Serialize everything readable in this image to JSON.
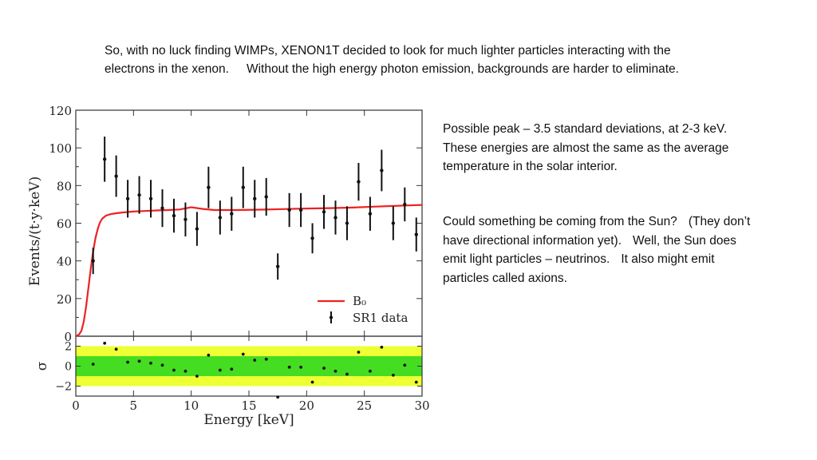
{
  "intro": {
    "line1": "So, with no luck finding WIMPs, XENON1T decided to look for much lighter particles interacting with the",
    "line2a": "electrons in the xenon.",
    "line2b": "Without the high energy photon emission, backgrounds are harder to eliminate."
  },
  "note1": {
    "line1": "Possible peak – 3.5 standard deviations, at 2-3 keV.",
    "line2": "These energies are almost the same as the average",
    "line3": "temperature in the solar interior."
  },
  "note2": {
    "line1a": "Could something be coming from the Sun?",
    "line1b": "(They don’t",
    "line2a": "have directional information yet).",
    "line2b": "Well, the Sun does",
    "line3a": "emit light particles – neutrinos.",
    "line3b": "It also might emit",
    "line4": "particles called axions."
  },
  "colors": {
    "model_line": "#ee2222",
    "band_inner": "#44dd22",
    "band_outer": "#eeff33",
    "data": "#111111"
  },
  "chart_data": [
    {
      "type": "scatter",
      "title": "",
      "xlabel": "",
      "ylabel": "Events/(t·y·keV)",
      "xlim": [
        0,
        30
      ],
      "ylim": [
        0,
        120
      ],
      "yticks": [
        0,
        20,
        40,
        60,
        80,
        100,
        120
      ],
      "legend": {
        "placement": "bottom-right",
        "entries": [
          "B₀",
          "SR1 data"
        ]
      },
      "series": [
        {
          "name": "B₀",
          "kind": "line",
          "x": [
            0,
            0.3,
            0.5,
            0.7,
            0.9,
            1.1,
            1.3,
            1.5,
            1.7,
            1.9,
            2.1,
            2.3,
            2.6,
            3,
            3.5,
            4,
            5,
            6,
            7,
            8,
            9,
            10,
            11,
            12,
            14,
            16,
            18,
            20,
            22,
            24,
            26,
            28,
            30
          ],
          "y": [
            0,
            1,
            3,
            8,
            16,
            26,
            36,
            45,
            52,
            57,
            60.5,
            62.5,
            64,
            64.8,
            65.3,
            65.7,
            66.2,
            66.5,
            66.8,
            67,
            67.3,
            68.5,
            67.6,
            67,
            67,
            67.2,
            67.5,
            67.8,
            68,
            68.3,
            68.8,
            69.3,
            69.7
          ]
        },
        {
          "name": "SR1 data",
          "kind": "points",
          "x": [
            1.5,
            2.5,
            3.5,
            4.5,
            5.5,
            6.5,
            7.5,
            8.5,
            9.5,
            10.5,
            11.5,
            12.5,
            13.5,
            14.5,
            15.5,
            16.5,
            17.5,
            18.5,
            19.5,
            20.5,
            21.5,
            22.5,
            23.5,
            24.5,
            25.5,
            26.5,
            27.5,
            28.5,
            29.5
          ],
          "y": [
            40,
            94,
            85,
            73,
            75,
            73,
            68,
            64,
            62,
            57,
            79,
            63,
            65,
            79,
            73,
            74,
            37,
            67,
            67,
            52,
            66,
            63,
            60,
            82,
            65,
            88,
            60,
            70,
            54
          ],
          "err": [
            7,
            12,
            11,
            10,
            10,
            10,
            10,
            9,
            9,
            9,
            11,
            9,
            9,
            11,
            10,
            10,
            7,
            9,
            9,
            8,
            9,
            9,
            9,
            10,
            9,
            11,
            9,
            9,
            9
          ]
        }
      ]
    },
    {
      "type": "scatter",
      "title": "",
      "xlabel": "Energy [keV]",
      "ylabel": "σ",
      "xlim": [
        0,
        30
      ],
      "ylim": [
        -3,
        3
      ],
      "yticks": [
        -2,
        0,
        2
      ],
      "ytick_labels": [
        "−2",
        "0",
        "2"
      ],
      "xticks": [
        0,
        5,
        10,
        15,
        20,
        25,
        30
      ],
      "bands": [
        {
          "name": "2σ",
          "range": [
            -2,
            2
          ]
        },
        {
          "name": "1σ",
          "range": [
            -1,
            1
          ]
        }
      ],
      "series": [
        {
          "name": "",
          "x": [
            1.5,
            2.5,
            3.5,
            4.5,
            5.5,
            6.5,
            7.5,
            8.5,
            9.5,
            10.5,
            11.5,
            12.5,
            13.5,
            14.5,
            15.5,
            16.5,
            17.5,
            18.5,
            19.5,
            20.5,
            21.5,
            22.5,
            23.5,
            24.5,
            25.5,
            26.5,
            27.5,
            28.5,
            29.5
          ],
          "y": [
            0.2,
            2.3,
            1.7,
            0.4,
            0.5,
            0.3,
            0.1,
            -0.4,
            -0.5,
            -1,
            1.1,
            -0.4,
            -0.3,
            1.2,
            0.6,
            0.7,
            -3.1,
            -0.1,
            -0.1,
            -1.6,
            -0.2,
            -0.5,
            -0.8,
            1.4,
            -0.5,
            1.9,
            -0.9,
            0.1,
            -1.6
          ]
        }
      ]
    }
  ]
}
